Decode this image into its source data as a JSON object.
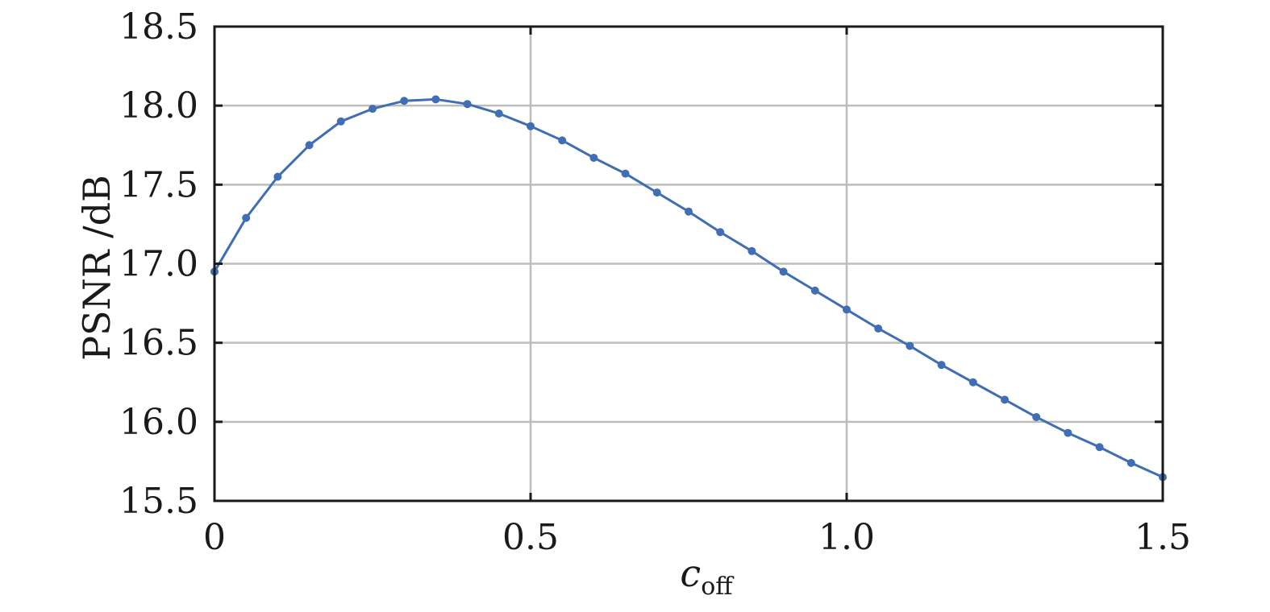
{
  "chart_data": {
    "type": "line",
    "xlabel": "c",
    "xlabel_subscript": "off",
    "ylabel": "PSNR /dB",
    "xlim": [
      0,
      1.5
    ],
    "ylim": [
      15.5,
      18.5
    ],
    "x_ticks": [
      "0",
      "0.5",
      "1.0",
      "1.5"
    ],
    "x_tick_values": [
      0,
      0.5,
      1.0,
      1.5
    ],
    "y_ticks": [
      "15.5",
      "16.0",
      "16.5",
      "17.0",
      "17.5",
      "18.0",
      "18.5"
    ],
    "y_tick_values": [
      15.5,
      16.0,
      16.5,
      17.0,
      17.5,
      18.0,
      18.5
    ],
    "grid": true,
    "series": [
      {
        "color": "#3f6eb4",
        "x": [
          0,
          0.05,
          0.1,
          0.15,
          0.2,
          0.25,
          0.3,
          0.35,
          0.4,
          0.45,
          0.5,
          0.55,
          0.6,
          0.65,
          0.7,
          0.75,
          0.8,
          0.85,
          0.9,
          0.95,
          1.0,
          1.05,
          1.1,
          1.15,
          1.2,
          1.25,
          1.3,
          1.35,
          1.4,
          1.45,
          1.5
        ],
        "y": [
          16.95,
          17.29,
          17.55,
          17.75,
          17.9,
          17.98,
          18.03,
          18.04,
          18.01,
          17.95,
          17.87,
          17.78,
          17.67,
          17.57,
          17.45,
          17.33,
          17.2,
          17.08,
          16.95,
          16.83,
          16.71,
          16.59,
          16.48,
          16.36,
          16.25,
          16.14,
          16.03,
          15.93,
          15.84,
          15.74,
          15.65
        ]
      }
    ]
  }
}
